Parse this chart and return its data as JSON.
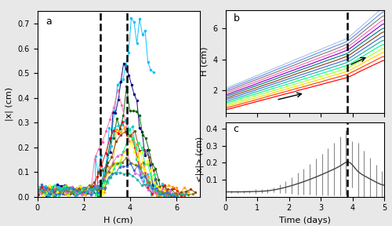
{
  "panel_a": {
    "label": "a",
    "xlabel": "H (cm)",
    "ylabel": "|x| (cm)",
    "xlim": [
      0,
      7
    ],
    "ylim": [
      0,
      0.75
    ],
    "yticks": [
      0,
      0.1,
      0.2,
      0.3,
      0.4,
      0.5,
      0.6,
      0.7
    ],
    "xticks": [
      0,
      2,
      4,
      6
    ],
    "dashed_lines": [
      2.7,
      3.85
    ],
    "colors": [
      "#00bfff",
      "#000080",
      "#006400",
      "#ff69b4",
      "#00ced1",
      "#ff0000",
      "#ffa500",
      "#8b4513",
      "#00ff7f",
      "#ffff00",
      "#da70d6",
      "#808000",
      "#4169e1",
      "#20b2aa"
    ]
  },
  "panel_b": {
    "label": "b",
    "ylabel": "H (cm)",
    "xlim": [
      0,
      5.0
    ],
    "ylim": [
      0.5,
      7.2
    ],
    "yticks": [
      2,
      4,
      6
    ],
    "xticks": [
      0,
      1,
      2,
      3,
      4,
      5
    ],
    "dashed_x": 3.85,
    "colors": [
      "#ff0000",
      "#ff4500",
      "#ffd700",
      "#adff2f",
      "#00ff7f",
      "#20b2aa",
      "#4169e1",
      "#8b4513",
      "#008080",
      "#9400d3",
      "#ff69b4",
      "#808080",
      "#6495ed",
      "#b0c4de"
    ]
  },
  "panel_c": {
    "label": "c",
    "xlabel": "Time (days)",
    "ylabel": "<|x|> (cm)",
    "xlim": [
      0,
      5.0
    ],
    "ylim": [
      0,
      0.44
    ],
    "yticks": [
      0.1,
      0.2,
      0.3,
      0.4
    ],
    "xticks": [
      0,
      1,
      2,
      3,
      4,
      5
    ],
    "dashed_x": 3.85,
    "line_color": "#444444"
  },
  "background_color": "#e8e8e8",
  "border_color": "black"
}
